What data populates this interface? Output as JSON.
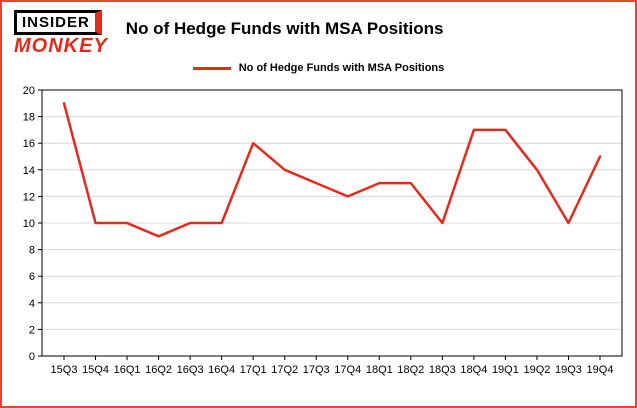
{
  "brand": {
    "line1": "INSIDER",
    "line2": "MONKEY"
  },
  "title": "No of Hedge Funds with MSA Positions",
  "legend": {
    "label": "No of Hedge Funds with MSA Positions"
  },
  "colors": {
    "accent": "#e42a1d",
    "frame_border": "#e8432e",
    "grid": "#d8d8d8",
    "axis": "#000000",
    "background": "#ffffff"
  },
  "chart_data": {
    "type": "line",
    "title": "No of Hedge Funds with MSA Positions",
    "categories": [
      "15Q3",
      "15Q4",
      "16Q1",
      "16Q2",
      "16Q3",
      "16Q4",
      "17Q1",
      "17Q2",
      "17Q3",
      "17Q4",
      "18Q1",
      "18Q2",
      "18Q3",
      "18Q4",
      "19Q1",
      "19Q2",
      "19Q3",
      "19Q4"
    ],
    "values": [
      19,
      10,
      10,
      9,
      10,
      10,
      16,
      14,
      13,
      12,
      13,
      13,
      10,
      17,
      17,
      14,
      10,
      15
    ],
    "xlabel": "",
    "ylabel": "",
    "ylim": [
      0,
      20
    ],
    "ytick_step": 2,
    "grid": true,
    "line_color": "#e42a1d",
    "legend_position": "top"
  }
}
